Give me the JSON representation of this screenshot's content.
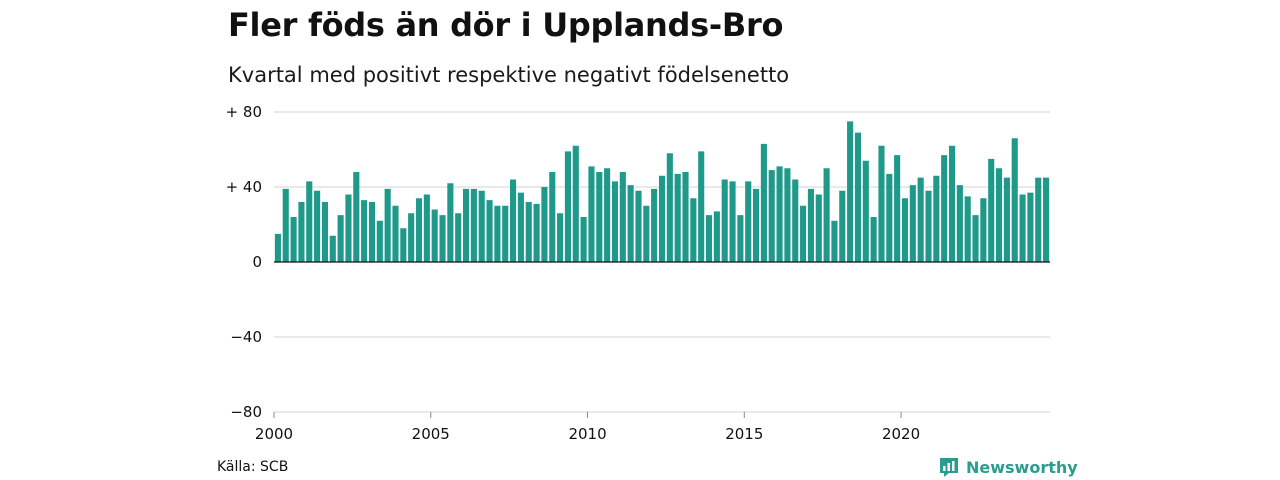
{
  "title": "Fler föds än dör i Upplands-Bro",
  "subtitle": "Kvartal med positivt respektive negativt födelsenetto",
  "source": "Källa: SCB",
  "brand": {
    "name": "Newsworthy",
    "icon": "newsworthy-logo-icon",
    "color": "#2a9d8f"
  },
  "chart_data": {
    "type": "bar",
    "title": "Fler föds än dör i Upplands-Bro",
    "subtitle": "Kvartal med positivt respektive negativt födelsenetto",
    "xlabel": "",
    "ylabel": "",
    "bar_color": "#1f9a8a",
    "grid": true,
    "ylim": [
      -80,
      80
    ],
    "y_ticks": [
      {
        "value": 80,
        "label": "+ 80"
      },
      {
        "value": 40,
        "label": "+ 40"
      },
      {
        "value": 0,
        "label": "0"
      },
      {
        "value": -40,
        "label": "−40"
      },
      {
        "value": -80,
        "label": "−80"
      }
    ],
    "x_ticks": [
      {
        "value": 2000,
        "label": "2000"
      },
      {
        "value": 2005,
        "label": "2005"
      },
      {
        "value": 2010,
        "label": "2010"
      },
      {
        "value": 2015,
        "label": "2015"
      },
      {
        "value": 2020,
        "label": "2020"
      }
    ],
    "start_year": 2000,
    "frequency": "quarterly",
    "categories": [
      "2000Q1",
      "2000Q2",
      "2000Q3",
      "2000Q4",
      "2001Q1",
      "2001Q2",
      "2001Q3",
      "2001Q4",
      "2002Q1",
      "2002Q2",
      "2002Q3",
      "2002Q4",
      "2003Q1",
      "2003Q2",
      "2003Q3",
      "2003Q4",
      "2004Q1",
      "2004Q2",
      "2004Q3",
      "2004Q4",
      "2005Q1",
      "2005Q2",
      "2005Q3",
      "2005Q4",
      "2006Q1",
      "2006Q2",
      "2006Q3",
      "2006Q4",
      "2007Q1",
      "2007Q2",
      "2007Q3",
      "2007Q4",
      "2008Q1",
      "2008Q2",
      "2008Q3",
      "2008Q4",
      "2009Q1",
      "2009Q2",
      "2009Q3",
      "2009Q4",
      "2010Q1",
      "2010Q2",
      "2010Q3",
      "2010Q4",
      "2011Q1",
      "2011Q2",
      "2011Q3",
      "2011Q4",
      "2012Q1",
      "2012Q2",
      "2012Q3",
      "2012Q4",
      "2013Q1",
      "2013Q2",
      "2013Q3",
      "2013Q4",
      "2014Q1",
      "2014Q2",
      "2014Q3",
      "2014Q4",
      "2015Q1",
      "2015Q2",
      "2015Q3",
      "2015Q4",
      "2016Q1",
      "2016Q2",
      "2016Q3",
      "2016Q4",
      "2017Q1",
      "2017Q2",
      "2017Q3",
      "2017Q4",
      "2018Q1",
      "2018Q2",
      "2018Q3",
      "2018Q4",
      "2019Q1",
      "2019Q2",
      "2019Q3",
      "2019Q4",
      "2020Q1",
      "2020Q2",
      "2020Q3",
      "2020Q4",
      "2021Q1",
      "2021Q2",
      "2021Q3",
      "2021Q4",
      "2022Q1",
      "2022Q2",
      "2022Q3",
      "2022Q4",
      "2023Q1",
      "2023Q2",
      "2023Q3",
      "2023Q4",
      "2024Q1",
      "2024Q2",
      "2024Q3"
    ],
    "values": [
      15,
      39,
      24,
      32,
      43,
      38,
      32,
      14,
      25,
      36,
      48,
      33,
      32,
      22,
      39,
      30,
      18,
      26,
      34,
      36,
      28,
      25,
      42,
      26,
      39,
      39,
      38,
      33,
      30,
      30,
      44,
      37,
      32,
      31,
      40,
      48,
      26,
      59,
      62,
      24,
      51,
      48,
      50,
      43,
      48,
      41,
      38,
      30,
      39,
      46,
      58,
      47,
      48,
      34,
      59,
      25,
      27,
      44,
      43,
      25,
      43,
      39,
      63,
      49,
      51,
      50,
      44,
      30,
      39,
      36,
      50,
      22,
      38,
      75,
      69,
      54,
      24,
      62,
      47,
      57,
      34,
      41,
      45,
      38,
      46,
      57,
      62,
      41,
      35,
      25,
      34,
      55,
      50,
      45,
      66,
      36,
      37,
      45,
      45
    ]
  }
}
